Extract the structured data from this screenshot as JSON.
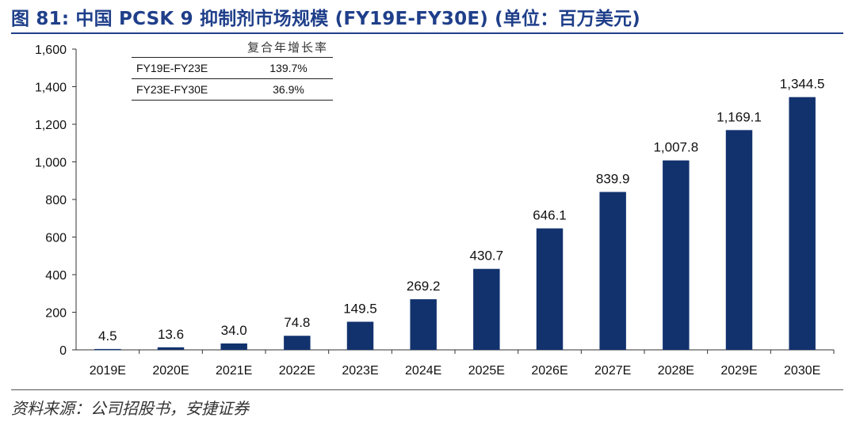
{
  "header": {
    "title": "图 81: 中国 PCSK 9 抑制剂市场规模 (FY19E-FY30E) (单位：百万美元)"
  },
  "source": "资料来源：公司招股书，安捷证券",
  "cagr_table": {
    "header": "复合年增长率",
    "rows": [
      {
        "period": "FY19E-FY23E",
        "value": "139.7%"
      },
      {
        "period": "FY23E-FY30E",
        "value": "36.9%"
      }
    ]
  },
  "colors": {
    "bar": "#12326e",
    "title": "#1f3f8a"
  },
  "chart_data": {
    "type": "bar",
    "title": "中国 PCSK 9 抑制剂市场规模 (FY19E-FY30E) (单位：百万美元)",
    "categories": [
      "2019E",
      "2020E",
      "2021E",
      "2022E",
      "2023E",
      "2024E",
      "2025E",
      "2026E",
      "2027E",
      "2028E",
      "2029E",
      "2030E"
    ],
    "values": [
      4.5,
      13.6,
      34.0,
      74.8,
      149.5,
      269.2,
      430.7,
      646.1,
      839.9,
      1007.8,
      1169.1,
      1344.5
    ],
    "labels": [
      "4.5",
      "13.6",
      "34.0",
      "74.8",
      "149.5",
      "269.2",
      "430.7",
      "646.1",
      "839.9",
      "1,007.8",
      "1,169.1",
      "1,344.5"
    ],
    "yticks": [
      "0",
      "200",
      "400",
      "600",
      "800",
      "1,000",
      "1,200",
      "1,400",
      "1,600"
    ],
    "ylim": [
      0,
      1600
    ],
    "xlabel": "",
    "ylabel": "",
    "grid": false,
    "legend": "none"
  }
}
